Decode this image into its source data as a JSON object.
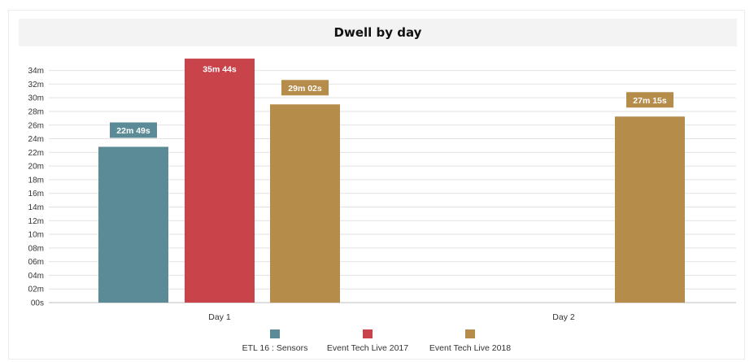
{
  "chart_data": {
    "type": "bar",
    "title": "Dwell by day",
    "categories": [
      "Day 1",
      "Day 2"
    ],
    "ylim": [
      0,
      2160
    ],
    "y_unit": "seconds",
    "y_ticks": [
      {
        "value": 0,
        "label": "00s"
      },
      {
        "value": 120,
        "label": "02m"
      },
      {
        "value": 240,
        "label": "04m"
      },
      {
        "value": 360,
        "label": "06m"
      },
      {
        "value": 480,
        "label": "08m"
      },
      {
        "value": 600,
        "label": "10m"
      },
      {
        "value": 720,
        "label": "12m"
      },
      {
        "value": 840,
        "label": "14m"
      },
      {
        "value": 960,
        "label": "16m"
      },
      {
        "value": 1080,
        "label": "18m"
      },
      {
        "value": 1200,
        "label": "20m"
      },
      {
        "value": 1320,
        "label": "22m"
      },
      {
        "value": 1440,
        "label": "24m"
      },
      {
        "value": 1560,
        "label": "26m"
      },
      {
        "value": 1680,
        "label": "28m"
      },
      {
        "value": 1800,
        "label": "30m"
      },
      {
        "value": 1920,
        "label": "32m"
      },
      {
        "value": 2040,
        "label": "34m"
      }
    ],
    "series": [
      {
        "name": "ETL 16 : Sensors",
        "color": "#5a8b96",
        "values": [
          1369,
          null
        ],
        "labels": [
          "22m 49s",
          null
        ]
      },
      {
        "name": "Event Tech Live 2017",
        "color": "#c8434a",
        "values": [
          2144,
          null
        ],
        "labels": [
          "35m 44s",
          null
        ]
      },
      {
        "name": "Event Tech Live 2018",
        "color": "#b68c4a",
        "values": [
          1742,
          1635
        ],
        "labels": [
          "29m 02s",
          "27m 15s"
        ]
      }
    ],
    "grid": true,
    "legend_position": "bottom"
  }
}
